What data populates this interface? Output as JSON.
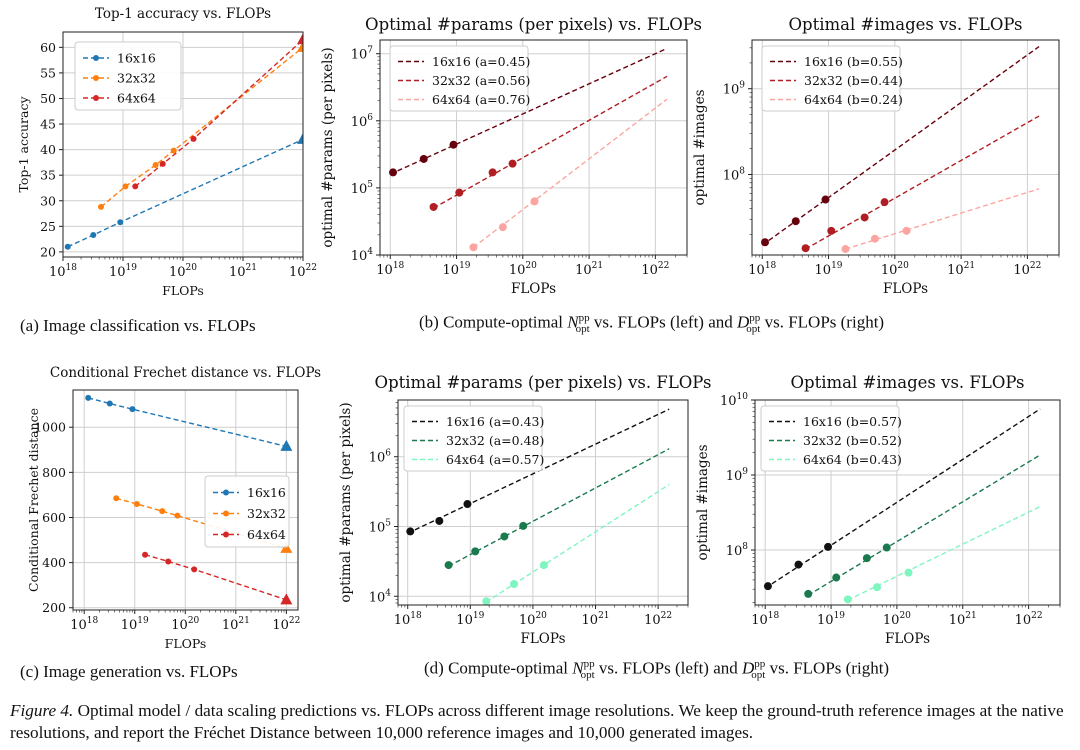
{
  "chart_data": [
    {
      "id": "A",
      "type": "line",
      "title": "Top-1 accuracy vs. FLOPs",
      "xlabel": "FLOPs",
      "ylabel": "Top-1 accuracy",
      "xscale": "log",
      "xlim": [
        1e+18,
        1e+22
      ],
      "ylim": [
        19,
        63
      ],
      "yticks": [
        20,
        25,
        30,
        35,
        40,
        45,
        50,
        55,
        60
      ],
      "xtick_labels": [
        "10^18",
        "10^19",
        "10^20",
        "10^21",
        "10^22"
      ],
      "legend_position": "upper-left",
      "series": [
        {
          "name": "16x16",
          "color": "#1f77b4",
          "x": [
            1.2e+18,
            3.2e+18,
            9e+18,
            1e+22
          ],
          "y": [
            21,
            23.3,
            25.8,
            42
          ],
          "pred_index": 3
        },
        {
          "name": "32x32",
          "color": "#ff7f0e",
          "x": [
            4.3e+18,
            1.1e+19,
            3.5e+19,
            7e+19,
            1e+22
          ],
          "y": [
            28.8,
            32.8,
            37,
            39.8,
            60
          ],
          "pred_index": 4
        },
        {
          "name": "64x64",
          "color": "#d62728",
          "x": [
            1.6e+19,
            4.6e+19,
            1.5e+20,
            1e+22
          ],
          "y": [
            32.8,
            37.2,
            42.1,
            61.5
          ],
          "pred_index": 3
        }
      ]
    },
    {
      "id": "B",
      "type": "line",
      "title": "Optimal #params (per pixels) vs. FLOPs",
      "xlabel": "FLOPs",
      "ylabel": "optimal #params (per pixels)",
      "xscale": "log",
      "yscale": "log",
      "xlim": [
        7e+17,
        3e+22
      ],
      "ylim": [
        10000.0,
        16000000.0
      ],
      "ytick_labels": [
        "10^4",
        "10^5",
        "10^6",
        "10^7"
      ],
      "xtick_labels": [
        "10^18",
        "10^19",
        "10^20",
        "10^21",
        "10^22"
      ],
      "legend_position": "upper-left",
      "series": [
        {
          "name": "16x16 (a=0.45)",
          "color": "#67000d",
          "x": [
            1.1e+18,
            3.2e+18,
            9e+18
          ],
          "y": [
            170000.0,
            270000.0,
            440000.0
          ],
          "line_x": [
            1e+18,
            1.5e+22
          ],
          "line_y": [
            160000.0,
            12000000.0
          ]
        },
        {
          "name": "32x32 (a=0.56)",
          "color": "#b01e23",
          "x": [
            4.5e+18,
            1.1e+19,
            3.5e+19,
            7e+19
          ],
          "y": [
            52000.0,
            85000.0,
            170000.0,
            230000.0
          ],
          "line_x": [
            4.5e+18,
            1.5e+22
          ],
          "line_y": [
            50000.0,
            4600000.0
          ]
        },
        {
          "name": "64x64 (a=0.76)",
          "color": "#fca5a0",
          "x": [
            1.8e+19,
            5e+19,
            1.5e+20
          ],
          "y": [
            13000.0,
            26000.0,
            63000.0
          ],
          "line_x": [
            1.8e+19,
            1.5e+22
          ],
          "line_y": [
            13000.0,
            2100000.0
          ]
        }
      ]
    },
    {
      "id": "C",
      "type": "line",
      "title": "Optimal #images vs. FLOPs",
      "xlabel": "FLOPs",
      "ylabel": "optimal #images",
      "xscale": "log",
      "yscale": "log",
      "xlim": [
        7e+17,
        3e+22
      ],
      "ylim": [
        11500000.0,
        3700000000.0
      ],
      "ytick_labels": [
        "10^8",
        "10^9"
      ],
      "xtick_labels": [
        "10^18",
        "10^19",
        "10^20",
        "10^21",
        "10^22"
      ],
      "legend_position": "upper-left",
      "series": [
        {
          "name": "16x16 (b=0.55)",
          "color": "#67000d",
          "x": [
            1.1e+18,
            3.2e+18,
            9e+18
          ],
          "y": [
            16200000.0,
            28500000.0,
            51000000.0
          ],
          "line_x": [
            1e+18,
            1.5e+22
          ],
          "line_y": [
            15000000.0,
            3100000000.0
          ]
        },
        {
          "name": "32x32 (b=0.44)",
          "color": "#b01e23",
          "x": [
            4.5e+18,
            1.1e+19,
            3.5e+19,
            7e+19
          ],
          "y": [
            13800000.0,
            22000000.0,
            31500000.0,
            47500000.0
          ],
          "line_x": [
            4.5e+18,
            1.5e+22
          ],
          "line_y": [
            13500000.0,
            480000000.0
          ]
        },
        {
          "name": "64x64 (b=0.24)",
          "color": "#fca5a0",
          "x": [
            1.8e+19,
            5e+19,
            1.5e+20
          ],
          "y": [
            13500000.0,
            17800000.0,
            22000000.0
          ],
          "line_x": [
            1.8e+19,
            1.5e+22
          ],
          "line_y": [
            13500000.0,
            68000000.0
          ]
        }
      ]
    },
    {
      "id": "D",
      "type": "line",
      "title": "Conditional Frechet distance vs. FLOPs",
      "xlabel": "FLOPs",
      "ylabel": "Conditional Frechet distance",
      "xscale": "log",
      "xlim": [
        6e+17,
        1.7e+22
      ],
      "ylim": [
        190,
        1165
      ],
      "yticks": [
        200,
        400,
        600,
        800,
        1000
      ],
      "xtick_labels": [
        "10^18",
        "10^19",
        "10^20",
        "10^21",
        "10^22"
      ],
      "legend_position": "center-right",
      "series": [
        {
          "name": "16x16",
          "color": "#1f77b4",
          "x": [
            1.2e+18,
            3.2e+18,
            9e+18,
            1e+22
          ],
          "y": [
            1130,
            1105,
            1080,
            915
          ],
          "pred_index": 3
        },
        {
          "name": "32x32",
          "color": "#ff7f0e",
          "x": [
            4.3e+18,
            1.1e+19,
            3.5e+19,
            7e+19,
            1e+22
          ],
          "y": [
            685,
            660,
            628,
            608,
            463
          ],
          "pred_index": 4
        },
        {
          "name": "64x64",
          "color": "#d62728",
          "x": [
            1.6e+19,
            4.6e+19,
            1.5e+20,
            1e+22
          ],
          "y": [
            435,
            405,
            370,
            235
          ],
          "pred_index": 3
        }
      ]
    },
    {
      "id": "E",
      "type": "line",
      "title": "Optimal #params (per pixels) vs. FLOPs",
      "xlabel": "FLOPs",
      "ylabel": "optimal #params (per pixels)",
      "xscale": "log",
      "yscale": "log",
      "xlim": [
        7e+17,
        3e+22
      ],
      "ylim": [
        7500.0,
        6500000.0
      ],
      "ytick_labels": [
        "10^4",
        "10^5",
        "10^6"
      ],
      "xtick_labels": [
        "10^18",
        "10^19",
        "10^20",
        "10^21",
        "10^22"
      ],
      "legend_position": "upper-left",
      "series": [
        {
          "name": "16x16 (a=0.43)",
          "color": "#111111",
          "x": [
            1.1e+18,
            3.2e+18,
            9e+18
          ],
          "y": [
            85000.0,
            120000.0,
            210000.0
          ],
          "line_x": [
            1e+18,
            1.5e+22
          ],
          "line_y": [
            80000.0,
            4800000.0
          ]
        },
        {
          "name": "32x32 (a=0.48)",
          "color": "#1a7a4e",
          "x": [
            4.5e+18,
            1.2e+19,
            3.5e+19,
            7e+19
          ],
          "y": [
            28000.0,
            44000.0,
            72000.0,
            102000.0
          ],
          "line_x": [
            4.5e+18,
            1.5e+22
          ],
          "line_y": [
            27000.0,
            1300000.0
          ]
        },
        {
          "name": "64x64 (a=0.57)",
          "color": "#7ff5c0",
          "x": [
            1.8e+19,
            5e+19,
            1.5e+20
          ],
          "y": [
            8500.0,
            15000.0,
            28000.0
          ],
          "line_x": [
            1.8e+19,
            1.5e+22
          ],
          "line_y": [
            8300.0,
            400000.0
          ]
        }
      ]
    },
    {
      "id": "F",
      "type": "line",
      "title": "Optimal #images vs. FLOPs",
      "xlabel": "FLOPs",
      "ylabel": "optimal #images",
      "xscale": "log",
      "yscale": "log",
      "xlim": [
        7e+17,
        3e+22
      ],
      "ylim": [
        18500000.0,
        10000000000.0
      ],
      "ytick_labels": [
        "10^8",
        "10^9",
        "10^10"
      ],
      "xtick_labels": [
        "10^18",
        "10^19",
        "10^20",
        "10^21",
        "10^22"
      ],
      "legend_position": "upper-left",
      "series": [
        {
          "name": "16x16 (b=0.57)",
          "color": "#111111",
          "x": [
            1.1e+18,
            3.2e+18,
            9e+18
          ],
          "y": [
            33000000.0,
            64000000.0,
            110000000.0
          ],
          "line_x": [
            1e+18,
            1.5e+22
          ],
          "line_y": [
            31000000.0,
            7600000000.0
          ]
        },
        {
          "name": "32x32 (b=0.52)",
          "color": "#1a7a4e",
          "x": [
            4.5e+18,
            1.2e+19,
            3.5e+19,
            7e+19
          ],
          "y": [
            26000000.0,
            43000000.0,
            78000000.0,
            108000000.0
          ],
          "line_x": [
            4.5e+18,
            1.5e+22
          ],
          "line_y": [
            25000000.0,
            1850000000.0
          ]
        },
        {
          "name": "64x64 (b=0.43)",
          "color": "#7ff5c0",
          "x": [
            1.8e+19,
            5e+19,
            1.5e+20
          ],
          "y": [
            22000000.0,
            32000000.0,
            50000000.0
          ],
          "line_x": [
            1.8e+19,
            1.5e+22
          ],
          "line_y": [
            21500000.0,
            380000000.0
          ]
        }
      ]
    }
  ],
  "captions": {
    "a": "(a) Image classification vs. FLOPs",
    "b_pre": "(b) Compute-optimal",
    "b_mid": "vs. FLOPs (left) and",
    "b_post": "vs. FLOPs (right)",
    "c": "(c) Image generation vs. FLOPs",
    "d_pre": "(d) Compute-optimal",
    "d_mid": "vs. FLOPs (left) and",
    "d_post": "vs. FLOPs (right)",
    "n_sym": "N",
    "d_sym": "D",
    "sup": "pp",
    "sub": "opt"
  },
  "figure_caption": {
    "label": "Figure 4.",
    "text": "Optimal model / data scaling predictions vs. FLOPs across different image resolutions. We keep the ground-truth reference images at the native resolutions, and report the Fréchet Distance between 10,000 reference images and 10,000 generated images."
  }
}
